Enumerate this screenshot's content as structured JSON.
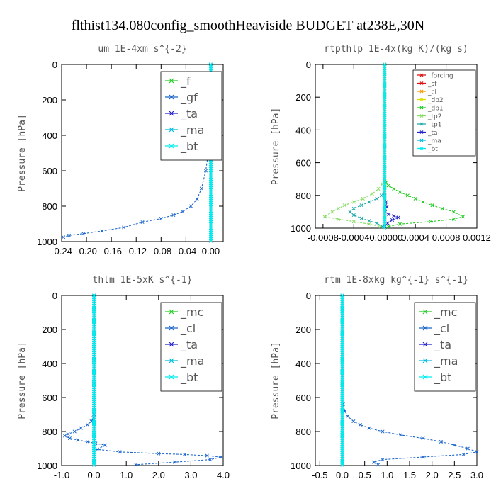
{
  "figure_title": "flthist134.080config_smoothHeaviside  BUDGET at238E,30N",
  "colors": {
    "green": "#22cc22",
    "lightgreen": "#88dd66",
    "blue": "#1a66cc",
    "navy": "#2222cc",
    "cyan": "#00bbdd",
    "aqua": "#00eeee",
    "red": "#dd1111",
    "orange": "#ff9900",
    "yellow": "#dddd00",
    "teal": "#22aaaa"
  },
  "chart_data": [
    {
      "type": "line",
      "title": "um  1E-4xm s^{-2}",
      "ylabel": "Pressure [hPa]",
      "xlim": [
        -0.24,
        0.02
      ],
      "ylim": [
        1000,
        0
      ],
      "xticks": [
        -0.24,
        -0.2,
        -0.16,
        -0.12,
        -0.08,
        -0.04,
        0.0
      ],
      "xtick_labels": [
        "-0.24",
        "-0.20",
        "-0.16",
        "-0.12",
        "-0.08",
        "-0.04",
        "0.00"
      ],
      "yticks": [
        0,
        200,
        400,
        600,
        800,
        1000
      ],
      "legend_position": "top-right",
      "legend_font": 16,
      "series": [
        {
          "name": "_f",
          "color": "green",
          "marker": "x",
          "x": [
            0,
            0
          ],
          "y": [
            0,
            1000
          ]
        },
        {
          "name": "_gf",
          "color": "blue",
          "marker": "x",
          "x": [
            0.0,
            0.0,
            0.0,
            -0.001,
            -0.002,
            -0.004,
            -0.008,
            -0.015,
            -0.022,
            -0.032,
            -0.045,
            -0.06,
            -0.08,
            -0.11,
            -0.14,
            -0.175,
            -0.205,
            -0.228,
            -0.237
          ],
          "y": [
            0,
            100,
            200,
            300,
            400,
            500,
            600,
            700,
            760,
            800,
            830,
            850,
            870,
            890,
            920,
            940,
            955,
            965,
            975
          ]
        },
        {
          "name": "_ta",
          "color": "navy",
          "marker": "x",
          "x": [
            0,
            0
          ],
          "y": [
            0,
            1000
          ]
        },
        {
          "name": "_ma",
          "color": "cyan",
          "marker": "x",
          "x": [
            0,
            0
          ],
          "y": [
            0,
            1000
          ]
        },
        {
          "name": "_bt",
          "color": "aqua",
          "marker": "x",
          "x": [
            0,
            0
          ],
          "y": [
            0,
            1000
          ]
        }
      ]
    },
    {
      "type": "line",
      "title": "rtpthlp  1E-4x(kg K)/(kg s)",
      "ylabel": "Pressure [hPa]",
      "xlim": [
        -0.0009,
        0.0012
      ],
      "ylim": [
        1000,
        0
      ],
      "xticks": [
        -0.0008,
        -0.0004,
        0.0,
        0.0004,
        0.0008,
        0.0012
      ],
      "xtick_labels": [
        "-0.0008",
        "-0.0004",
        "-0.00000",
        "0.0004",
        "0.0008",
        "0.0012"
      ],
      "yticks": [
        0,
        200,
        400,
        600,
        800,
        1000
      ],
      "legend_position": "top-right",
      "legend_font": 9,
      "series": [
        {
          "name": "_forcing",
          "color": "red",
          "marker": "x",
          "x": [
            0,
            0
          ],
          "y": [
            0,
            1000
          ]
        },
        {
          "name": "_sf",
          "color": "red",
          "marker": "x",
          "x": [
            0,
            0
          ],
          "y": [
            0,
            1000
          ]
        },
        {
          "name": "_cl",
          "color": "orange",
          "marker": "x",
          "x": [
            0,
            0
          ],
          "y": [
            0,
            1000
          ]
        },
        {
          "name": "_dp2",
          "color": "yellow",
          "marker": "x",
          "x": [
            0,
            0
          ],
          "y": [
            0,
            1000
          ]
        },
        {
          "name": "_dp1",
          "color": "green",
          "marker": "x",
          "x": [
            0.0,
            0.0,
            2e-05,
            5e-05,
            0.00012,
            0.0002,
            0.0003,
            0.0004,
            0.0005,
            0.00062,
            0.00075,
            0.0009,
            0.00102,
            0.0009,
            0.0006,
            0.0002,
            5e-05
          ],
          "y": [
            0,
            700,
            720,
            740,
            760,
            780,
            800,
            820,
            840,
            860,
            880,
            900,
            930,
            945,
            960,
            975,
            990
          ]
        },
        {
          "name": "_tp2",
          "color": "lightgreen",
          "marker": "x",
          "x": [
            0.0,
            0.0,
            -3e-05,
            -8e-05,
            -0.00016,
            -0.00028,
            -0.0004,
            -0.00052,
            -0.0006,
            -0.00068,
            -0.00078,
            -0.0006,
            -0.0004,
            -0.0002,
            -5e-05
          ],
          "y": [
            0,
            700,
            730,
            760,
            790,
            820,
            840,
            860,
            880,
            900,
            930,
            945,
            960,
            975,
            990
          ]
        },
        {
          "name": "_tp1",
          "color": "teal",
          "marker": "x",
          "x": [
            0.0,
            0.0,
            -1e-05,
            -4e-05,
            -0.0001,
            -0.0002,
            -0.0003,
            -0.0004,
            -0.00045,
            -0.0004,
            -0.0003,
            -0.0002,
            -0.0001,
            -3e-05
          ],
          "y": [
            0,
            750,
            780,
            800,
            820,
            840,
            860,
            880,
            900,
            920,
            940,
            955,
            970,
            990
          ]
        },
        {
          "name": "_ta",
          "color": "navy",
          "marker": "x",
          "x": [
            0.0,
            0.0,
            2e-05,
            3e-05,
            1e-05,
            5e-05,
            0.00012,
            0.00018,
            0.0001,
            4e-05,
            0.0
          ],
          "y": [
            0,
            800,
            840,
            870,
            900,
            915,
            925,
            935,
            950,
            970,
            990
          ]
        },
        {
          "name": "_ma",
          "color": "cyan",
          "marker": "x",
          "x": [
            0,
            0
          ],
          "y": [
            0,
            1000
          ]
        },
        {
          "name": "_bt",
          "color": "aqua",
          "marker": "x",
          "x": [
            0,
            0
          ],
          "y": [
            0,
            1000
          ]
        }
      ]
    },
    {
      "type": "line",
      "title": "thlm  1E-5xK s^{-1}",
      "ylabel": "Pressure [hPa]",
      "xlim": [
        -1.0,
        4.0
      ],
      "ylim": [
        1000,
        0
      ],
      "xticks": [
        -1.0,
        0.0,
        1.0,
        2.0,
        3.0,
        4.0
      ],
      "xtick_labels": [
        "-1.0",
        "0.0",
        "1.0",
        "2.0",
        "3.0",
        "4.0"
      ],
      "yticks": [
        0,
        200,
        400,
        600,
        800,
        1000
      ],
      "legend_position": "top-right",
      "legend_font": 16,
      "series": [
        {
          "name": "_mc",
          "color": "green",
          "marker": "x",
          "x": [
            0,
            0
          ],
          "y": [
            0,
            1000
          ]
        },
        {
          "name": "_cl",
          "color": "blue",
          "marker": "x",
          "x": [
            0.0,
            0.0,
            -0.02,
            -0.08,
            -0.2,
            -0.4,
            -0.6,
            -0.8,
            -0.9,
            -0.75,
            -0.5,
            -0.2,
            0.05,
            0.35,
            0.1,
            0.8,
            2.0,
            2.8,
            3.5,
            3.95,
            3.6,
            2.5,
            1.3
          ],
          "y": [
            0,
            700,
            720,
            740,
            760,
            780,
            800,
            815,
            825,
            840,
            850,
            860,
            870,
            880,
            905,
            920,
            930,
            935,
            942,
            950,
            965,
            980,
            995
          ]
        },
        {
          "name": "_ta",
          "color": "navy",
          "marker": "x",
          "x": [
            0,
            0
          ],
          "y": [
            0,
            1000
          ]
        },
        {
          "name": "_ma",
          "color": "cyan",
          "marker": "x",
          "x": [
            0,
            0
          ],
          "y": [
            0,
            1000
          ]
        },
        {
          "name": "_bt",
          "color": "aqua",
          "marker": "x",
          "x": [
            0,
            0
          ],
          "y": [
            0,
            1000
          ]
        }
      ]
    },
    {
      "type": "line",
      "title": "rtm  1E-8xkg kg^{-1} s^{-1}",
      "ylabel": "Pressure [hPa]",
      "xlim": [
        -0.6,
        3.0
      ],
      "ylim": [
        1000,
        0
      ],
      "xticks": [
        -0.5,
        0.0,
        0.5,
        1.0,
        1.5,
        2.0,
        2.5,
        3.0
      ],
      "xtick_labels": [
        "-0.5",
        "0.0",
        "0.5",
        "1.0",
        "1.5",
        "2.0",
        "2.5",
        "3.0"
      ],
      "yticks": [
        0,
        200,
        400,
        600,
        800,
        1000
      ],
      "legend_position": "top-right",
      "legend_font": 16,
      "series": [
        {
          "name": "_mc",
          "color": "green",
          "marker": "x",
          "x": [
            0,
            0
          ],
          "y": [
            0,
            1000
          ]
        },
        {
          "name": "_cl",
          "color": "blue",
          "marker": "x",
          "x": [
            0.0,
            0.0,
            0.02,
            0.06,
            0.12,
            0.25,
            0.4,
            0.6,
            0.9,
            1.3,
            1.8,
            2.2,
            2.5,
            2.8,
            3.0,
            2.7,
            1.8,
            0.9,
            0.7,
            0.8
          ],
          "y": [
            0,
            600,
            640,
            680,
            710,
            740,
            760,
            780,
            800,
            820,
            840,
            860,
            880,
            900,
            920,
            935,
            950,
            965,
            980,
            995
          ]
        },
        {
          "name": "_ta",
          "color": "navy",
          "marker": "x",
          "x": [
            0,
            0
          ],
          "y": [
            0,
            1000
          ]
        },
        {
          "name": "_ma",
          "color": "cyan",
          "marker": "x",
          "x": [
            0,
            0
          ],
          "y": [
            0,
            1000
          ]
        },
        {
          "name": "_bt",
          "color": "aqua",
          "marker": "x",
          "x": [
            0,
            0
          ],
          "y": [
            0,
            1000
          ]
        }
      ]
    }
  ]
}
